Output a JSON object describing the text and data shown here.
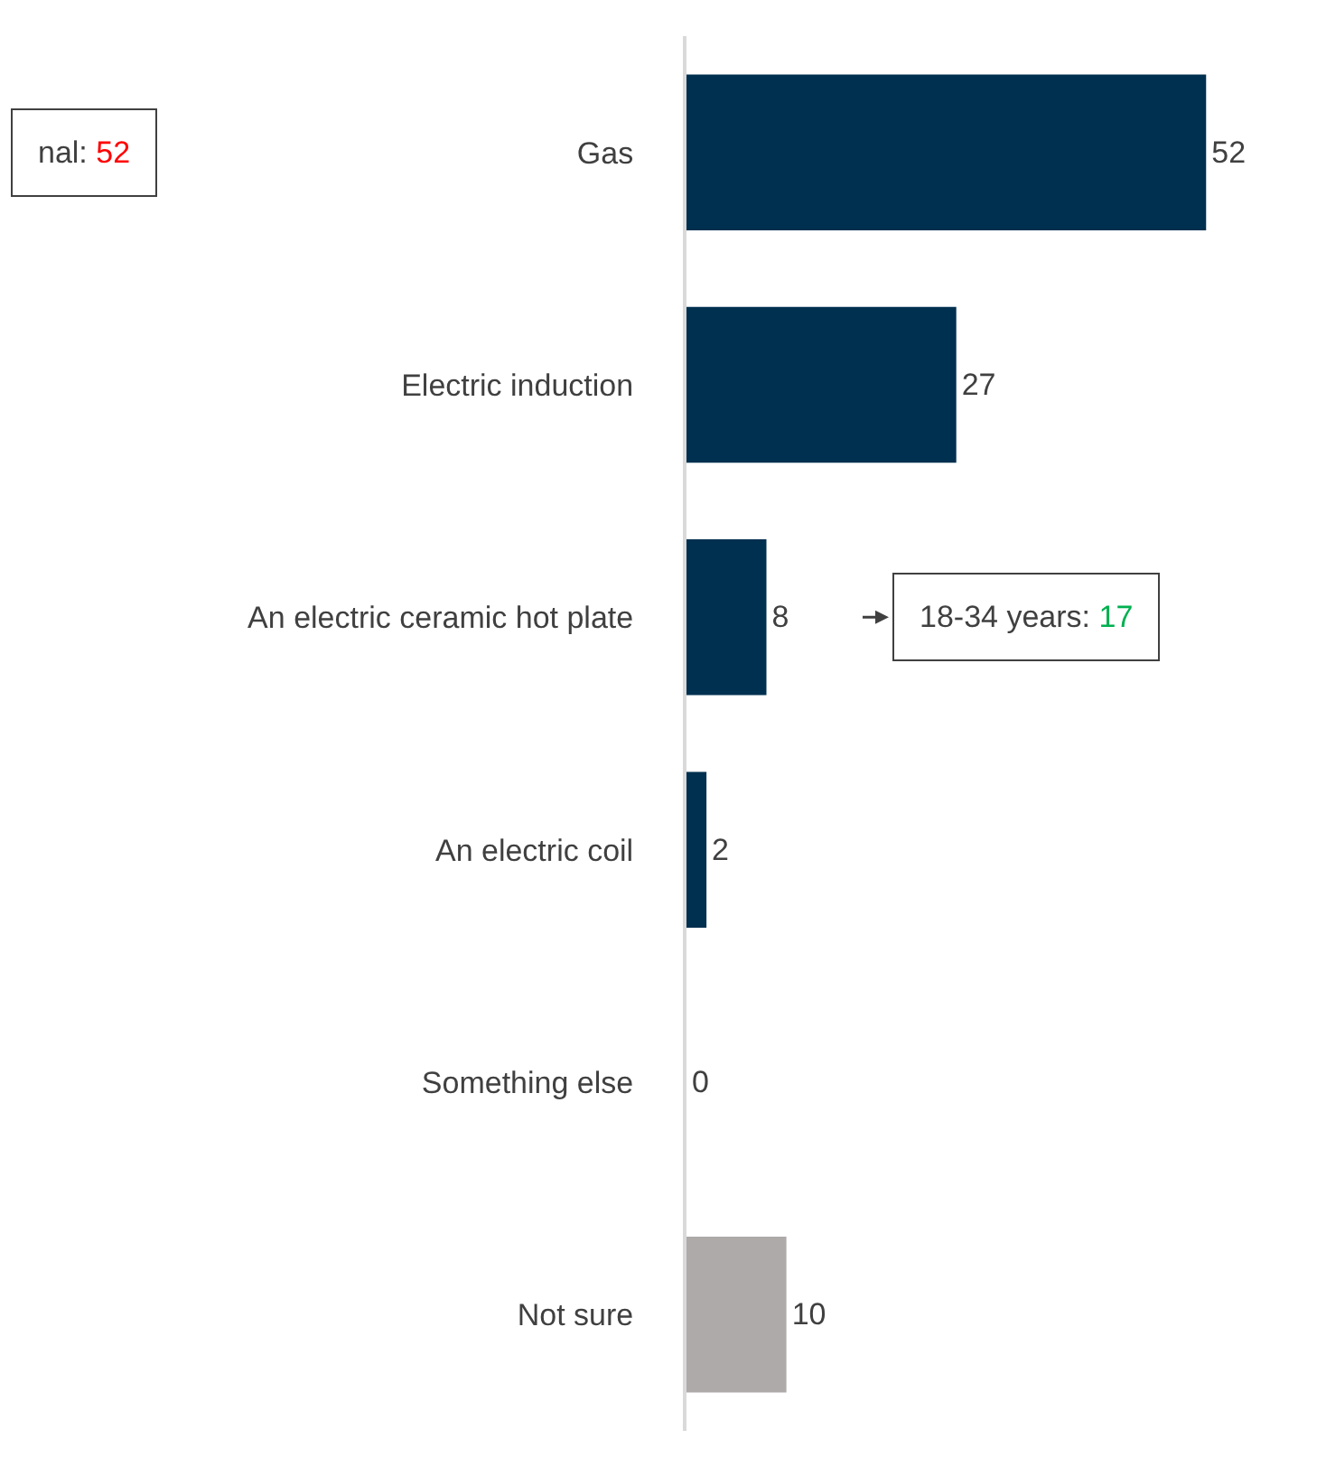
{
  "chart_data": {
    "type": "bar",
    "orientation": "horizontal",
    "categories": [
      "Gas",
      "Electric induction",
      "An electric ceramic hot plate",
      "An electric coil",
      "Something else",
      "Not sure"
    ],
    "values": [
      52,
      27,
      8,
      2,
      0,
      10
    ],
    "colors": [
      "#00304f",
      "#00304f",
      "#00304f",
      "#00304f",
      "#00304f",
      "#aeaaaa"
    ],
    "xlim": [
      0,
      64
    ],
    "tick_labels": "y",
    "data_labels": true,
    "legend": false,
    "annotations": [
      "nal: 52",
      "18-34 years: 17"
    ]
  }
}
